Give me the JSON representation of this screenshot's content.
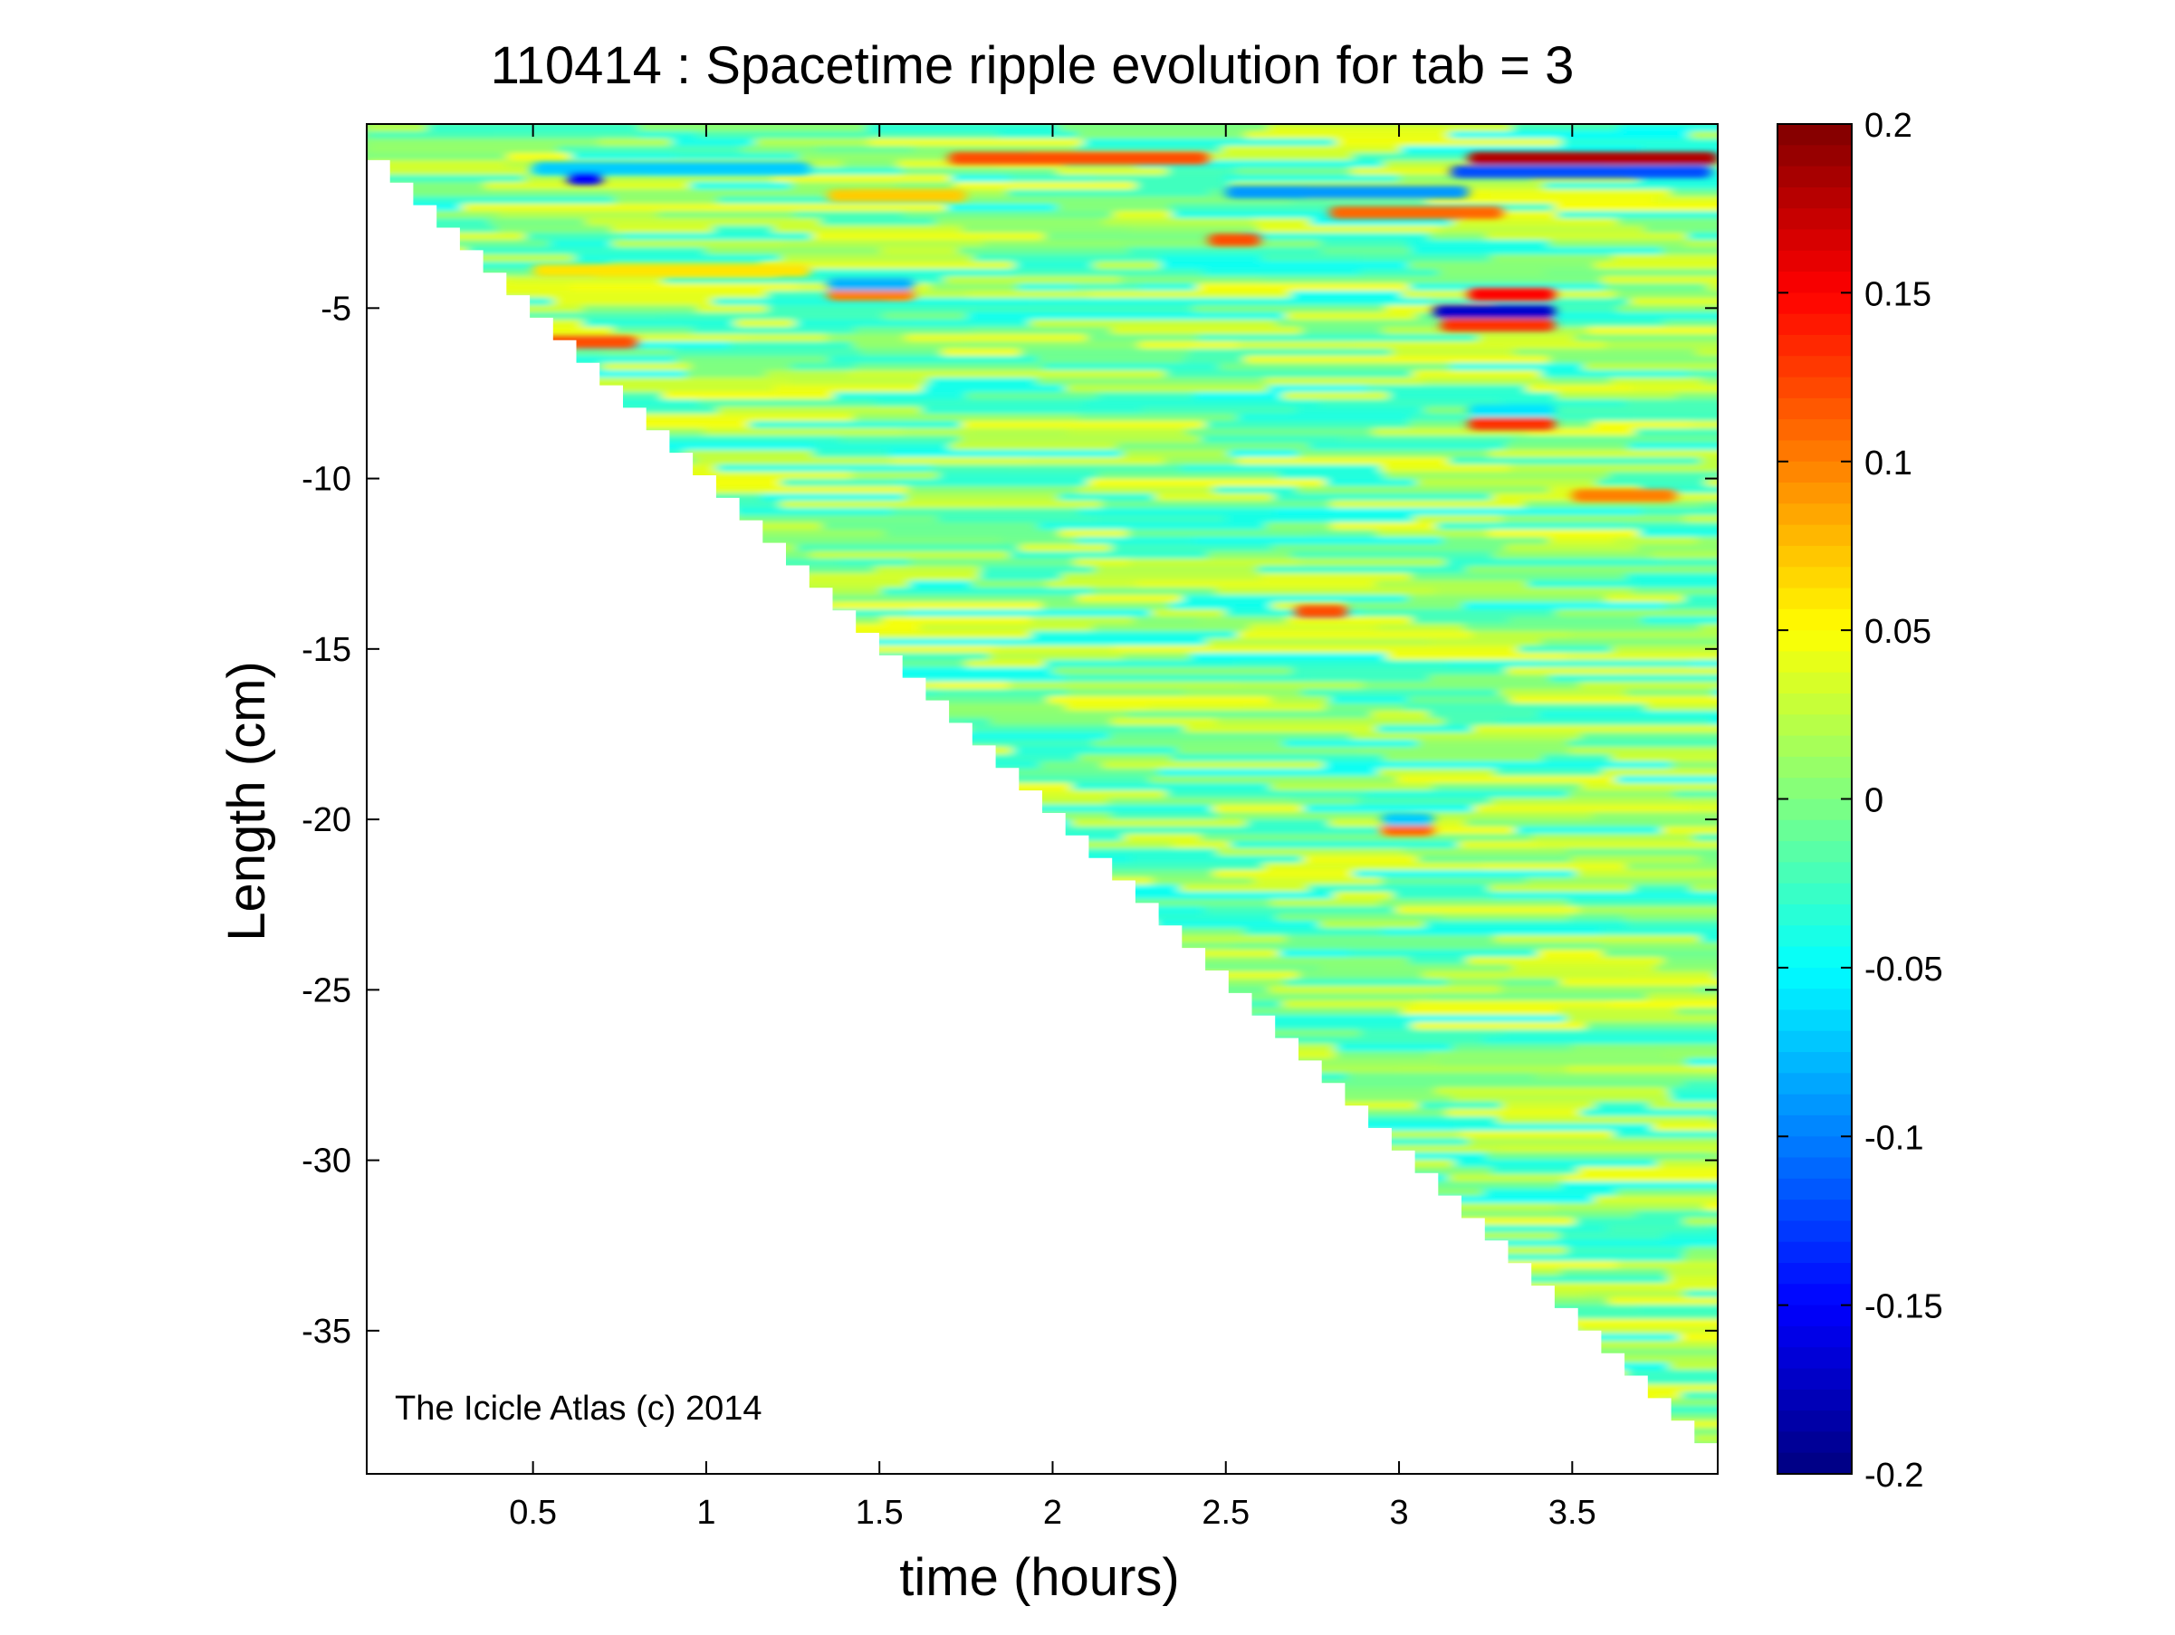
{
  "chart_data": {
    "type": "heatmap",
    "title": "110414 : Spacetime ripple evolution for tab = 3",
    "xlabel": "time (hours)",
    "ylabel": "Length (cm)",
    "xlim": [
      0.02,
      3.92
    ],
    "ylim": [
      -39.2,
      0.4
    ],
    "xticks": [
      0.5,
      1,
      1.5,
      2,
      2.5,
      3,
      3.5
    ],
    "xtick_labels": [
      "0.5",
      "1",
      "1.5",
      "2",
      "2.5",
      "3",
      "3.5"
    ],
    "yticks": [
      -5,
      -10,
      -15,
      -20,
      -25,
      -30,
      -35
    ],
    "ytick_labels": [
      "-5",
      "-10",
      "-15",
      "-20",
      "-25",
      "-30",
      "-35"
    ],
    "grid": false,
    "colormap": "jet",
    "clim": [
      -0.2,
      0.2
    ],
    "colorbar": {
      "ticks": [
        0.2,
        0.15,
        0.1,
        0.05,
        0,
        -0.05,
        -0.1,
        -0.15,
        -0.2
      ],
      "tick_labels": [
        "0.2",
        "0.15",
        "0.1",
        "0.05",
        "0",
        "-0.05",
        "-0.1",
        "-0.15",
        "-0.2"
      ],
      "placement": "right"
    },
    "data_region": "lower-left triangle empty; icicle length grows from about 0 cm at t = 0.02 h to about -38.3 cm at t = 3.92 h",
    "length_front": [
      [
        0.02,
        0.0
      ],
      [
        3.92,
        -38.3
      ]
    ],
    "background_value": 0.0,
    "features": [
      {
        "t_start": 1.7,
        "t_end": 2.45,
        "length": -0.6,
        "value": 0.12
      },
      {
        "t_start": 3.2,
        "t_end": 3.92,
        "length": -0.6,
        "value": 0.18
      },
      {
        "t_start": 3.15,
        "t_end": 3.9,
        "length": -1.0,
        "value": -0.12
      },
      {
        "t_start": 0.5,
        "t_end": 1.3,
        "length": -0.9,
        "value": -0.07
      },
      {
        "t_start": 0.6,
        "t_end": 0.7,
        "length": -1.2,
        "value": -0.15
      },
      {
        "t_start": 1.35,
        "t_end": 1.75,
        "length": -1.7,
        "value": 0.07
      },
      {
        "t_start": 2.5,
        "t_end": 3.2,
        "length": -1.6,
        "value": -0.09
      },
      {
        "t_start": 2.8,
        "t_end": 3.3,
        "length": -2.2,
        "value": 0.11
      },
      {
        "t_start": 2.45,
        "t_end": 2.6,
        "length": -3.0,
        "value": 0.12
      },
      {
        "t_start": 0.5,
        "t_end": 1.3,
        "length": -3.9,
        "value": 0.06
      },
      {
        "t_start": 1.35,
        "t_end": 1.6,
        "length": -4.6,
        "value": 0.1
      },
      {
        "t_start": 1.35,
        "t_end": 1.6,
        "length": -4.3,
        "value": -0.08
      },
      {
        "t_start": 3.2,
        "t_end": 3.45,
        "length": -4.6,
        "value": 0.15
      },
      {
        "t_start": 3.1,
        "t_end": 3.45,
        "length": -5.1,
        "value": -0.17
      },
      {
        "t_start": 3.12,
        "t_end": 3.45,
        "length": -5.5,
        "value": 0.13
      },
      {
        "t_start": 0.5,
        "t_end": 0.8,
        "length": -6.0,
        "value": 0.12
      },
      {
        "t_start": 3.2,
        "t_end": 3.45,
        "length": -8.4,
        "value": 0.13
      },
      {
        "t_start": 3.2,
        "t_end": 3.45,
        "length": -8.0,
        "value": -0.06
      },
      {
        "t_start": 3.5,
        "t_end": 3.8,
        "length": -10.5,
        "value": 0.1
      },
      {
        "t_start": 2.7,
        "t_end": 2.85,
        "length": -13.9,
        "value": 0.12
      },
      {
        "t_start": 2.95,
        "t_end": 3.1,
        "length": -20.3,
        "value": 0.11
      },
      {
        "t_start": 2.95,
        "t_end": 3.1,
        "length": -20.0,
        "value": -0.07
      }
    ],
    "annotations": [
      "The Icicle Atlas (c) 2014"
    ]
  }
}
